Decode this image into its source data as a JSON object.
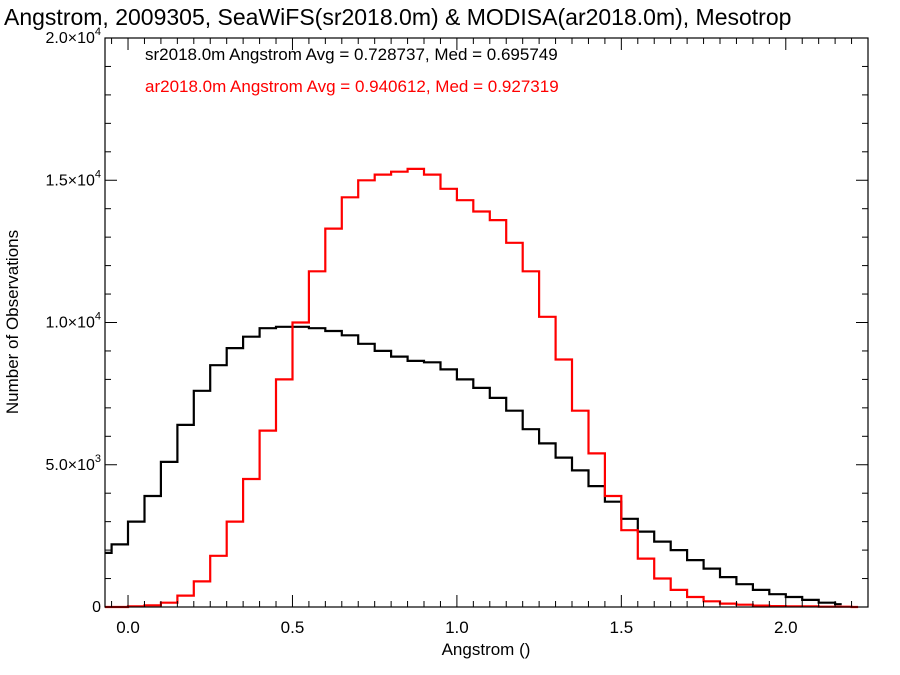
{
  "chart_data": {
    "type": "line",
    "title": "Angstrom, 2009305, SeaWiFS(sr2018.0m) & MODISA(ar2018.0m), Mesotrop",
    "xlabel": "Angstrom ()",
    "ylabel": "Number of Observations",
    "xlim": [
      -0.07,
      2.25
    ],
    "ylim": [
      0,
      20000
    ],
    "grid": false,
    "x_ticks": [
      {
        "value": 0.0,
        "label": "0.0"
      },
      {
        "value": 0.5,
        "label": "0.5"
      },
      {
        "value": 1.0,
        "label": "1.0"
      },
      {
        "value": 1.5,
        "label": "1.5"
      },
      {
        "value": 2.0,
        "label": "2.0"
      }
    ],
    "y_ticks": [
      {
        "value": 0,
        "mant": "0",
        "exp": ""
      },
      {
        "value": 5000,
        "mant": "5.0×10",
        "exp": "3"
      },
      {
        "value": 10000,
        "mant": "1.0×10",
        "exp": "4"
      },
      {
        "value": 15000,
        "mant": "1.5×10",
        "exp": "4"
      },
      {
        "value": 20000,
        "mant": "2.0×10",
        "exp": "4"
      }
    ],
    "annotations": [
      {
        "text": "sr2018.0m Angstrom Avg = 0.728737, Med = 0.695749",
        "color": "#000000"
      },
      {
        "text": "ar2018.0m Angstrom Avg = 0.940612, Med = 0.927319",
        "color": "#ff0000"
      }
    ],
    "series": [
      {
        "color": "#000000",
        "x": [
          -0.07,
          -0.05,
          0.0,
          0.05,
          0.1,
          0.15,
          0.2,
          0.25,
          0.3,
          0.35,
          0.4,
          0.45,
          0.5,
          0.55,
          0.6,
          0.65,
          0.7,
          0.75,
          0.8,
          0.85,
          0.9,
          0.95,
          1.0,
          1.05,
          1.1,
          1.15,
          1.2,
          1.25,
          1.3,
          1.35,
          1.4,
          1.45,
          1.5,
          1.55,
          1.6,
          1.65,
          1.7,
          1.75,
          1.8,
          1.85,
          1.9,
          1.95,
          2.0,
          2.05,
          2.1,
          2.15
        ],
        "y": [
          1900,
          2200,
          3000,
          3900,
          5100,
          6400,
          7600,
          8500,
          9100,
          9500,
          9800,
          9850,
          9850,
          9800,
          9700,
          9550,
          9250,
          9000,
          8800,
          8650,
          8600,
          8350,
          8000,
          7700,
          7350,
          6900,
          6250,
          5750,
          5250,
          4800,
          4250,
          3700,
          3100,
          2650,
          2300,
          2000,
          1650,
          1350,
          1050,
          800,
          600,
          450,
          350,
          250,
          150,
          100
        ]
      },
      {
        "color": "#ff0000",
        "x": [
          -0.07,
          0.0,
          0.05,
          0.1,
          0.15,
          0.2,
          0.25,
          0.3,
          0.35,
          0.4,
          0.45,
          0.5,
          0.55,
          0.6,
          0.65,
          0.7,
          0.75,
          0.8,
          0.85,
          0.9,
          0.95,
          1.0,
          1.05,
          1.1,
          1.15,
          1.2,
          1.25,
          1.3,
          1.35,
          1.4,
          1.45,
          1.5,
          1.55,
          1.6,
          1.65,
          1.7,
          1.75,
          1.8,
          1.85,
          1.9,
          1.95,
          2.0,
          2.1,
          2.2
        ],
        "y": [
          0,
          20,
          60,
          150,
          400,
          900,
          1800,
          3000,
          4500,
          6200,
          8000,
          10000,
          11800,
          13300,
          14400,
          15000,
          15200,
          15300,
          15400,
          15200,
          14700,
          14300,
          13900,
          13600,
          12800,
          11800,
          10200,
          8700,
          6900,
          5400,
          3900,
          2700,
          1700,
          1000,
          600,
          350,
          200,
          120,
          80,
          50,
          30,
          20,
          10,
          0
        ]
      }
    ]
  }
}
